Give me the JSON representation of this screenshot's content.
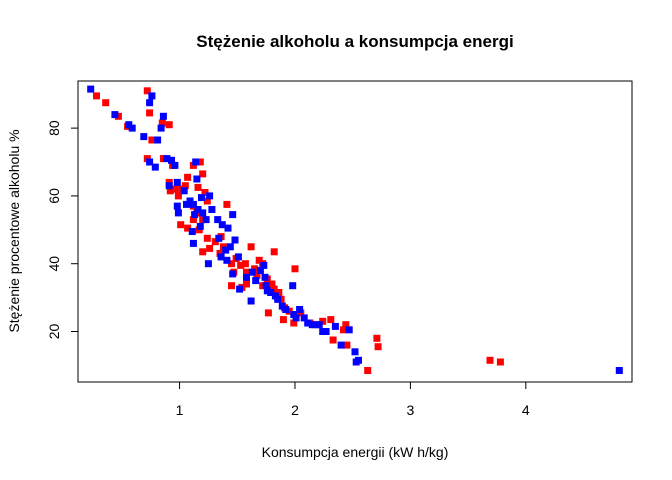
{
  "chart_data": {
    "type": "scatter",
    "title": "Stężenie alkoholu a konsumpcja energi",
    "xlabel": "Konsumpcja energii (kW h/kg)",
    "ylabel": "Stężenie procentowe alkoholu %",
    "xlim": [
      0.12,
      4.92
    ],
    "ylim": [
      5.1,
      93.9
    ],
    "xticks": [
      1,
      2,
      3,
      4
    ],
    "yticks": [
      20,
      40,
      60,
      80
    ],
    "grid": false,
    "legend": "none",
    "series": [
      {
        "color": "#ff0000",
        "marker": "square",
        "points": [
          [
            0.28,
            89.5
          ],
          [
            0.36,
            87.5
          ],
          [
            0.47,
            83.5
          ],
          [
            0.55,
            80.5
          ],
          [
            0.72,
            91.0
          ],
          [
            0.74,
            84.5
          ],
          [
            0.72,
            71.0
          ],
          [
            0.76,
            76.5
          ],
          [
            0.85,
            81.5
          ],
          [
            0.91,
            81.0
          ],
          [
            0.86,
            71.0
          ],
          [
            0.94,
            69.0
          ],
          [
            0.91,
            64.0
          ],
          [
            0.92,
            61.5
          ],
          [
            0.96,
            62.0
          ],
          [
            0.99,
            60.0
          ],
          [
            1.02,
            62.0
          ],
          [
            1.05,
            63.0
          ],
          [
            1.07,
            65.5
          ],
          [
            1.12,
            69.0
          ],
          [
            1.18,
            70.0
          ],
          [
            1.2,
            66.5
          ],
          [
            1.16,
            62.5
          ],
          [
            1.22,
            61.0
          ],
          [
            1.24,
            58.5
          ],
          [
            1.12,
            57.0
          ],
          [
            1.15,
            55.0
          ],
          [
            1.2,
            53.0
          ],
          [
            1.01,
            51.5
          ],
          [
            1.07,
            50.5
          ],
          [
            1.12,
            53.0
          ],
          [
            1.17,
            50.0
          ],
          [
            1.24,
            47.5
          ],
          [
            1.26,
            44.5
          ],
          [
            1.31,
            46.5
          ],
          [
            1.36,
            48.0
          ],
          [
            1.38,
            45.0
          ],
          [
            1.35,
            43.0
          ],
          [
            1.41,
            57.5
          ],
          [
            1.2,
            43.5
          ],
          [
            1.45,
            40.0
          ],
          [
            1.49,
            41.5
          ],
          [
            1.53,
            39.5
          ],
          [
            1.57,
            40.0
          ],
          [
            1.47,
            37.5
          ],
          [
            1.58,
            37.5
          ],
          [
            1.65,
            38.5
          ],
          [
            1.67,
            36.5
          ],
          [
            1.69,
            41.0
          ],
          [
            1.72,
            40.0
          ],
          [
            1.62,
            45.0
          ],
          [
            1.45,
            33.5
          ],
          [
            1.54,
            33.0
          ],
          [
            1.58,
            34.0
          ],
          [
            1.76,
            35.5
          ],
          [
            1.8,
            34.0
          ],
          [
            1.72,
            33.5
          ],
          [
            1.82,
            43.5
          ],
          [
            1.77,
            25.5
          ],
          [
            1.82,
            32.5
          ],
          [
            1.86,
            31.5
          ],
          [
            1.88,
            29.5
          ],
          [
            1.91,
            27.0
          ],
          [
            1.95,
            26.0
          ],
          [
            1.9,
            23.5
          ],
          [
            2.0,
            38.5
          ],
          [
            1.99,
            22.5
          ],
          [
            2.05,
            25.5
          ],
          [
            2.13,
            22.5
          ],
          [
            2.18,
            22.0
          ],
          [
            2.24,
            23.0
          ],
          [
            2.31,
            23.5
          ],
          [
            2.33,
            17.5
          ],
          [
            2.42,
            20.5
          ],
          [
            2.44,
            22.0
          ],
          [
            2.45,
            16.0
          ],
          [
            2.63,
            8.5
          ],
          [
            2.71,
            18.0
          ],
          [
            2.72,
            15.5
          ],
          [
            3.69,
            11.5
          ],
          [
            3.78,
            11.0
          ]
        ]
      },
      {
        "color": "#0000ff",
        "marker": "square",
        "points": [
          [
            0.23,
            91.5
          ],
          [
            0.44,
            84.0
          ],
          [
            0.56,
            81.0
          ],
          [
            0.59,
            80.0
          ],
          [
            0.74,
            87.5
          ],
          [
            0.76,
            89.5
          ],
          [
            0.86,
            83.5
          ],
          [
            0.81,
            76.5
          ],
          [
            0.84,
            80.0
          ],
          [
            0.69,
            77.5
          ],
          [
            0.74,
            70.0
          ],
          [
            0.79,
            68.5
          ],
          [
            0.89,
            71.0
          ],
          [
            0.93,
            70.5
          ],
          [
            0.96,
            69.0
          ],
          [
            0.91,
            63.0
          ],
          [
            0.98,
            64.0
          ],
          [
            1.04,
            61.5
          ],
          [
            0.98,
            57.0
          ],
          [
            0.99,
            55.0
          ],
          [
            1.06,
            57.5
          ],
          [
            1.09,
            58.5
          ],
          [
            1.12,
            57.5
          ],
          [
            1.13,
            54.5
          ],
          [
            1.16,
            56.0
          ],
          [
            1.11,
            49.5
          ],
          [
            1.18,
            51.0
          ],
          [
            1.2,
            55.0
          ],
          [
            1.23,
            53.0
          ],
          [
            1.28,
            56.0
          ],
          [
            1.33,
            53.0
          ],
          [
            1.37,
            51.5
          ],
          [
            1.42,
            50.5
          ],
          [
            1.34,
            47.5
          ],
          [
            1.4,
            44.0
          ],
          [
            1.44,
            45.0
          ],
          [
            1.48,
            47.0
          ],
          [
            1.14,
            70.0
          ],
          [
            1.15,
            65.0
          ],
          [
            1.19,
            59.5
          ],
          [
            1.26,
            60.0
          ],
          [
            1.12,
            46.0
          ],
          [
            1.25,
            40.0
          ],
          [
            1.36,
            42.0
          ],
          [
            1.41,
            41.0
          ],
          [
            1.46,
            37.0
          ],
          [
            1.51,
            42.0
          ],
          [
            1.46,
            54.5
          ],
          [
            1.52,
            32.5
          ],
          [
            1.58,
            36.0
          ],
          [
            1.62,
            29.0
          ],
          [
            1.63,
            37.5
          ],
          [
            1.66,
            35.0
          ],
          [
            1.7,
            38.0
          ],
          [
            1.73,
            39.5
          ],
          [
            1.74,
            36.0
          ],
          [
            1.75,
            33.5
          ],
          [
            1.76,
            32.0
          ],
          [
            1.79,
            31.5
          ],
          [
            1.83,
            30.5
          ],
          [
            1.85,
            29.5
          ],
          [
            1.89,
            27.5
          ],
          [
            1.92,
            26.5
          ],
          [
            1.98,
            33.5
          ],
          [
            1.99,
            25.0
          ],
          [
            2.01,
            24.0
          ],
          [
            2.04,
            26.5
          ],
          [
            2.08,
            24.0
          ],
          [
            2.11,
            22.5
          ],
          [
            2.15,
            22.0
          ],
          [
            2.21,
            22.0
          ],
          [
            2.24,
            20.0
          ],
          [
            2.27,
            20.0
          ],
          [
            2.35,
            21.5
          ],
          [
            2.4,
            16.0
          ],
          [
            2.47,
            20.5
          ],
          [
            2.52,
            14.0
          ],
          [
            2.55,
            11.5
          ],
          [
            2.53,
            11.0
          ],
          [
            4.81,
            8.5
          ]
        ]
      }
    ]
  }
}
